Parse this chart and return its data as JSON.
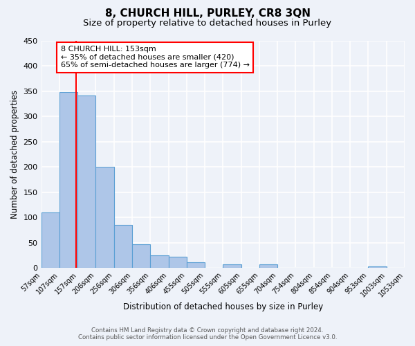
{
  "title": "8, CHURCH HILL, PURLEY, CR8 3QN",
  "subtitle": "Size of property relative to detached houses in Purley",
  "xlabel": "Distribution of detached houses by size in Purley",
  "ylabel": "Number of detached properties",
  "bin_edges": [
    57,
    107,
    157,
    206,
    256,
    306,
    356,
    406,
    455,
    505,
    555,
    605,
    655,
    704,
    754,
    804,
    854,
    904,
    953,
    1003,
    1053
  ],
  "bin_labels": [
    "57sqm",
    "107sqm",
    "157sqm",
    "206sqm",
    "256sqm",
    "306sqm",
    "356sqm",
    "406sqm",
    "455sqm",
    "505sqm",
    "555sqm",
    "605sqm",
    "655sqm",
    "704sqm",
    "754sqm",
    "804sqm",
    "854sqm",
    "904sqm",
    "953sqm",
    "1003sqm",
    "1053sqm"
  ],
  "counts": [
    110,
    348,
    342,
    201,
    86,
    47,
    25,
    22,
    11,
    0,
    7,
    0,
    8,
    0,
    0,
    0,
    0,
    0,
    3,
    0
  ],
  "bar_color": "#aec6e8",
  "bar_edge_color": "#5a9fd4",
  "red_line_x": 153,
  "annotation_title": "8 CHURCH HILL: 153sqm",
  "annotation_line1": "← 35% of detached houses are smaller (420)",
  "annotation_line2": "65% of semi-detached houses are larger (774) →",
  "annotation_box_color": "white",
  "annotation_box_edge_color": "red",
  "ylim": [
    0,
    450
  ],
  "yticks": [
    0,
    50,
    100,
    150,
    200,
    250,
    300,
    350,
    400,
    450
  ],
  "footer1": "Contains HM Land Registry data © Crown copyright and database right 2024.",
  "footer2": "Contains public sector information licensed under the Open Government Licence v3.0.",
  "background_color": "#eef2f9",
  "grid_color": "white",
  "title_fontsize": 11,
  "subtitle_fontsize": 9.5,
  "tick_fontsize": 7,
  "ylabel_fontsize": 8.5,
  "xlabel_fontsize": 8.5,
  "annotation_fontsize": 8
}
